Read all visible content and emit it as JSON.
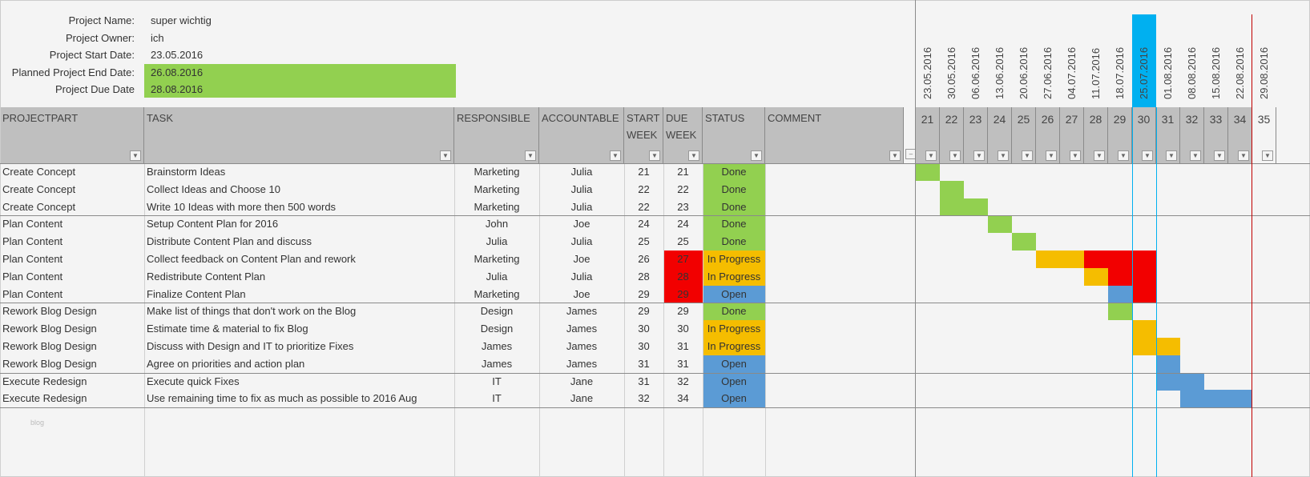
{
  "project": {
    "fields": [
      {
        "label": "Project Name:",
        "value": "super wichtig",
        "highlight": false
      },
      {
        "label": "Project Owner:",
        "value": "ich",
        "highlight": false
      },
      {
        "label": "Project Start Date:",
        "value": "23.05.2016",
        "highlight": false
      },
      {
        "label": "Planned Project End Date:",
        "value": "26.08.2016",
        "highlight": true
      },
      {
        "label": "Project Due Date",
        "value": "28.08.2016",
        "highlight": true
      }
    ]
  },
  "columns": [
    "PROJECTPART",
    "TASK",
    "RESPONSIBLE",
    "ACCOUNTABLE",
    "START WEEK",
    "DUE WEEK",
    "STATUS",
    "COMMENT"
  ],
  "timeline": {
    "weeks": [
      21,
      22,
      23,
      24,
      25,
      26,
      27,
      28,
      29,
      30,
      31,
      32,
      33,
      34,
      35
    ],
    "dates": [
      "23.05.2016",
      "30.05.2016",
      "06.06.2016",
      "13.06.2016",
      "20.06.2016",
      "27.06.2016",
      "04.07.2016",
      "11.07.2016",
      "18.07.2016",
      "25.07.2016",
      "01.08.2016",
      "08.08.2016",
      "15.08.2016",
      "22.08.2016",
      "29.08.2016"
    ],
    "current_week": 30,
    "due_marker_after_week": 34
  },
  "colors": {
    "Done": "#92d050",
    "In Progress": "#f5bd00",
    "Open": "#5b9bd5",
    "overdue": "#f20000",
    "current": "#00b0f0",
    "due_line": "#c00000"
  },
  "tasks": [
    {
      "part": "Create Concept",
      "task": "Brainstorm Ideas",
      "responsible": "Marketing",
      "accountable": "Julia",
      "start": 21,
      "due": 21,
      "status": "Done",
      "overdue": false
    },
    {
      "part": "Create Concept",
      "task": "Collect Ideas and Choose 10",
      "responsible": "Marketing",
      "accountable": "Julia",
      "start": 22,
      "due": 22,
      "status": "Done",
      "overdue": false
    },
    {
      "part": "Create Concept",
      "task": "Write 10 Ideas with more then 500 words",
      "responsible": "Marketing",
      "accountable": "Julia",
      "start": 22,
      "due": 23,
      "status": "Done",
      "overdue": false
    },
    {
      "part": "Plan Content",
      "task": "Setup Content Plan for 2016",
      "responsible": "John",
      "accountable": "Joe",
      "start": 24,
      "due": 24,
      "status": "Done",
      "overdue": false
    },
    {
      "part": "Plan Content",
      "task": "Distribute Content Plan and discuss",
      "responsible": "Julia",
      "accountable": "Julia",
      "start": 25,
      "due": 25,
      "status": "Done",
      "overdue": false
    },
    {
      "part": "Plan Content",
      "task": "Collect feedback on Content Plan and rework",
      "responsible": "Marketing",
      "accountable": "Joe",
      "start": 26,
      "due": 27,
      "status": "In Progress",
      "overdue": true
    },
    {
      "part": "Plan Content",
      "task": "Redistribute Content Plan",
      "responsible": "Julia",
      "accountable": "Julia",
      "start": 28,
      "due": 28,
      "status": "In Progress",
      "overdue": true
    },
    {
      "part": "Plan Content",
      "task": "Finalize Content Plan",
      "responsible": "Marketing",
      "accountable": "Joe",
      "start": 29,
      "due": 29,
      "status": "Open",
      "overdue": true
    },
    {
      "part": "Rework Blog Design",
      "task": "Make list of things that don't work on the Blog",
      "responsible": "Design",
      "accountable": "James",
      "start": 29,
      "due": 29,
      "status": "Done",
      "overdue": false
    },
    {
      "part": "Rework Blog Design",
      "task": "Estimate time & material to fix Blog",
      "responsible": "Design",
      "accountable": "James",
      "start": 30,
      "due": 30,
      "status": "In Progress",
      "overdue": false
    },
    {
      "part": "Rework Blog Design",
      "task": "Discuss with Design and IT to prioritize Fixes",
      "responsible": "James",
      "accountable": "James",
      "start": 30,
      "due": 31,
      "status": "In Progress",
      "overdue": false
    },
    {
      "part": "Rework Blog Design",
      "task": "Agree on priorities and action plan",
      "responsible": "James",
      "accountable": "James",
      "start": 31,
      "due": 31,
      "status": "Open",
      "overdue": false
    },
    {
      "part": "Execute Redesign",
      "task": "Execute quick Fixes",
      "responsible": "IT",
      "accountable": "Jane",
      "start": 31,
      "due": 32,
      "status": "Open",
      "overdue": false
    },
    {
      "part": "Execute Redesign",
      "task": "Use remaining time to fix as much as possible to 2016 Aug",
      "responsible": "IT",
      "accountable": "Jane",
      "start": 32,
      "due": 34,
      "status": "Open",
      "overdue": false
    }
  ],
  "footer_note": "blog"
}
